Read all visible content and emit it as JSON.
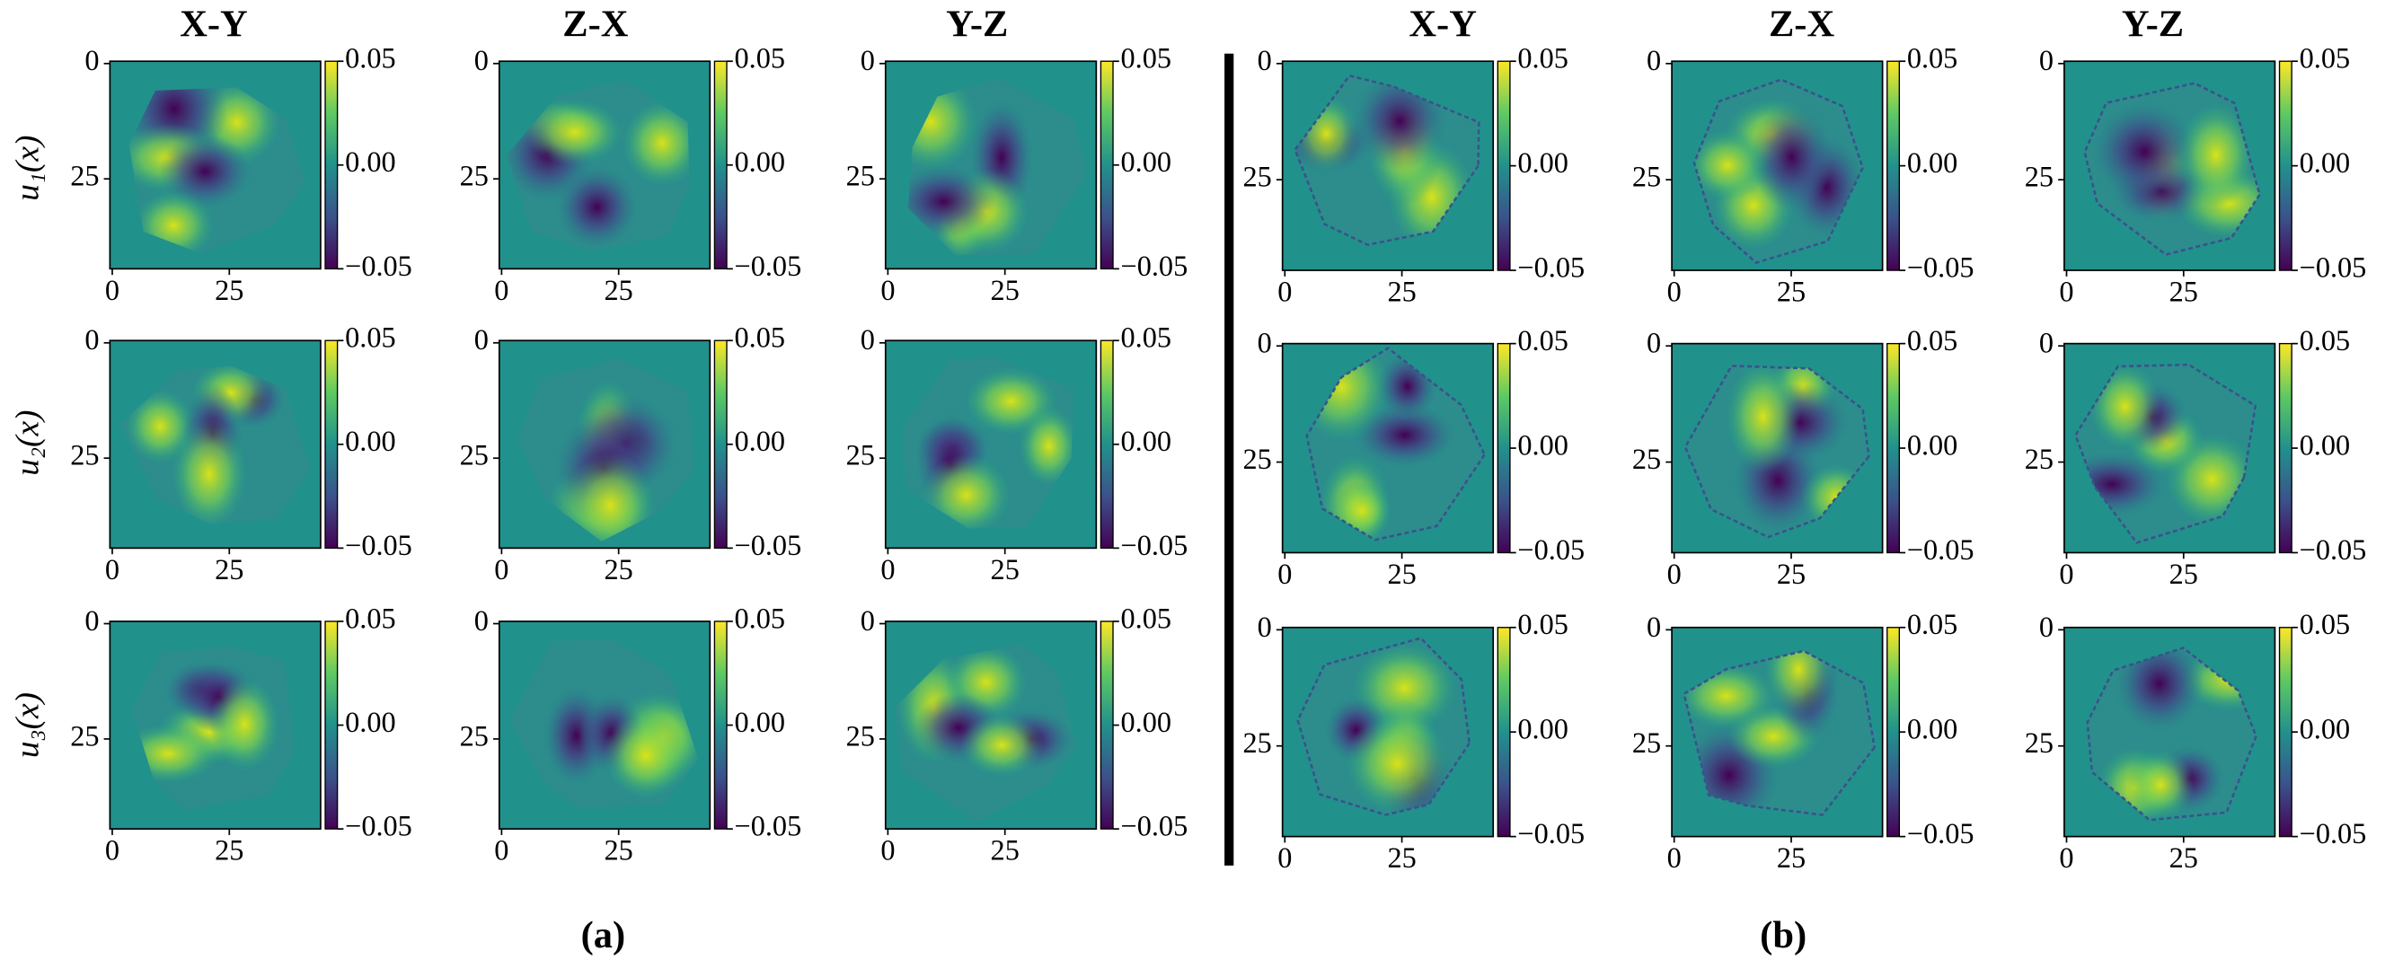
{
  "group_a": {
    "label": "(a)",
    "columns": [
      "X-Y",
      "Z-X",
      "Y-Z"
    ]
  },
  "group_b": {
    "label": "(b)",
    "columns": [
      "X-Y",
      "Z-X",
      "Y-Z"
    ]
  },
  "row_labels": [
    "u₁(x)",
    "u₂(x)",
    "u₃(x)"
  ],
  "axis_ticks": [
    0,
    25
  ],
  "axis_extent": 45,
  "colorbar_ticks": [
    0.05,
    {
      "value": 0,
      "label": "0.00"
    },
    {
      "value": -0.05,
      "label": "−0.05"
    }
  ]
}
